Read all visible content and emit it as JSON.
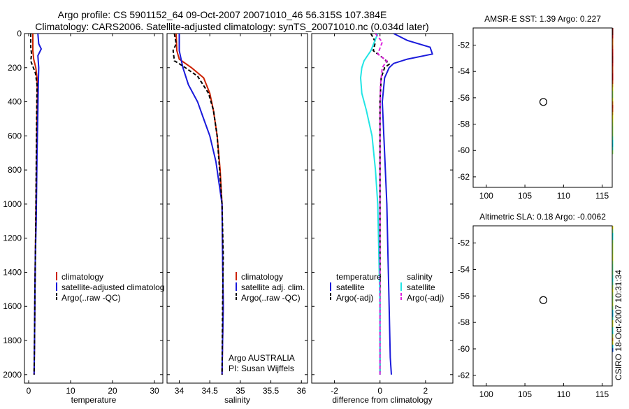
{
  "title": {
    "line1": "Argo profile: CS 5901152_64 09-Oct-2007 20071010_46 56.315S 107.384E",
    "line2": "Climatology: CARS2006. Satellite-adjusted climatology: synTS_20071010.nc (0.034d later)"
  },
  "side_label": "CSIRO 18-Oct-2007 10:31:34",
  "colors": {
    "climatology": "#cc2200",
    "satellite": "#1a1adb",
    "argo": "#000000",
    "salinity_satellite": "#22e5e5",
    "salinity_argo": "#dd22dd",
    "marker": "#000000"
  },
  "chart_data": [
    {
      "id": "temperature",
      "type": "line",
      "xlabel": "temperature",
      "ylabel": "",
      "xlim": [
        -1,
        32
      ],
      "ylim": [
        2050,
        0
      ],
      "xticks": [
        0,
        10,
        20,
        30
      ],
      "yticks": [
        0,
        200,
        400,
        600,
        800,
        1000,
        1200,
        1400,
        1600,
        1800,
        2000
      ],
      "legend": [
        "climatology",
        "satellite-adjusted climatolog",
        "Argo(..raw -QC)"
      ],
      "series": [
        {
          "name": "climatology",
          "color": "#cc2200",
          "dash": "",
          "x": [
            1.0,
            1.0,
            1.2,
            1.7,
            2.0,
            2.1,
            2.0,
            1.9,
            1.8,
            1.7,
            1.6,
            1.5,
            1.4,
            1.3
          ],
          "y": [
            0,
            100,
            150,
            200,
            260,
            350,
            500,
            700,
            900,
            1100,
            1300,
            1500,
            1800,
            2000
          ]
        },
        {
          "name": "satellite-adjusted climatolog",
          "color": "#1a1adb",
          "dash": "",
          "x": [
            2.2,
            2.4,
            3.0,
            2.2,
            2.4,
            2.3,
            2.2,
            2.0,
            1.9,
            1.8,
            1.6,
            1.5,
            1.4,
            1.3
          ],
          "y": [
            0,
            60,
            90,
            130,
            200,
            300,
            450,
            700,
            900,
            1100,
            1300,
            1500,
            1800,
            2000
          ]
        },
        {
          "name": "Argo(..raw -QC)",
          "color": "#000000",
          "dash": "5,3",
          "x": [
            0.5,
            0.5,
            0.7,
            0.5,
            0.8,
            1.6,
            2.0,
            1.9,
            1.8,
            1.7,
            1.6,
            1.5,
            1.4,
            1.3
          ],
          "y": [
            0,
            80,
            120,
            160,
            180,
            230,
            300,
            500,
            800,
            1100,
            1300,
            1500,
            1800,
            2000
          ]
        }
      ]
    },
    {
      "id": "salinity",
      "type": "line",
      "xlabel": "salinity",
      "ylabel": "",
      "xlim": [
        33.8,
        36.1
      ],
      "ylim": [
        2050,
        0
      ],
      "xticks": [
        34,
        34.5,
        35,
        35.5,
        36
      ],
      "yticks": [
        0,
        200,
        400,
        600,
        800,
        1000,
        1200,
        1400,
        1600,
        1800,
        2000
      ],
      "legend": [
        "climatology",
        "satellite adj. clim.",
        "Argo(..raw -QC)"
      ],
      "annotations": [
        "Argo AUSTRALIA",
        "PI: Susan Wijffels"
      ],
      "series": [
        {
          "name": "climatology",
          "color": "#cc2200",
          "dash": "",
          "x": [
            33.95,
            33.96,
            34.0,
            34.2,
            34.4,
            34.5,
            34.56,
            34.62,
            34.67,
            34.7,
            34.71,
            34.72,
            34.71,
            34.7
          ],
          "y": [
            0,
            100,
            150,
            200,
            260,
            350,
            450,
            600,
            800,
            1000,
            1300,
            1600,
            1800,
            2000
          ]
        },
        {
          "name": "satellite adj. clim.",
          "color": "#1a1adb",
          "dash": "",
          "x": [
            34.0,
            34.0,
            34.06,
            34.15,
            34.3,
            34.4,
            34.5,
            34.6,
            34.66,
            34.7,
            34.71,
            34.72,
            34.71,
            34.7
          ],
          "y": [
            0,
            100,
            200,
            300,
            400,
            500,
            600,
            750,
            900,
            1000,
            1300,
            1600,
            1800,
            2000
          ]
        },
        {
          "name": "Argo(..raw -QC)",
          "color": "#000000",
          "dash": "5,3",
          "x": [
            33.92,
            33.95,
            33.9,
            33.92,
            33.97,
            34.1,
            34.3,
            34.48,
            34.56,
            34.62,
            34.66,
            34.7,
            34.72,
            34.71,
            34.7
          ],
          "y": [
            0,
            60,
            100,
            160,
            170,
            200,
            250,
            350,
            450,
            600,
            800,
            1000,
            1300,
            1600,
            2000
          ]
        }
      ]
    },
    {
      "id": "difference",
      "type": "line",
      "xlabel": "difference from climatology",
      "ylabel": "",
      "xlim": [
        -3,
        3.2
      ],
      "ylim": [
        2050,
        0
      ],
      "xticks": [
        -2,
        0,
        2
      ],
      "yticks": [
        0,
        200,
        400,
        600,
        800,
        1000,
        1200,
        1400,
        1600,
        1800,
        2000
      ],
      "legend_groups": [
        {
          "heading": "temperature",
          "items": [
            "satellite",
            "Argo(-adj)"
          ]
        },
        {
          "heading": "salinity",
          "items": [
            "satellite",
            "Argo(-adj)"
          ]
        }
      ],
      "series": [
        {
          "name": "temperature satellite",
          "color": "#1a1adb",
          "dash": "",
          "x": [
            0.6,
            1.2,
            2.2,
            2.3,
            1.2,
            0.6,
            0.4,
            0.2,
            0.1,
            0.2,
            0.3,
            0.35,
            0.4,
            0.45,
            0.5
          ],
          "y": [
            0,
            40,
            80,
            120,
            150,
            175,
            200,
            260,
            400,
            700,
            1000,
            1300,
            1600,
            1900,
            2000
          ]
        },
        {
          "name": "temperature Argo(-adj)",
          "color": "#000000",
          "dash": "5,3",
          "x": [
            -0.4,
            -0.2,
            -0.3,
            0.2,
            0.4,
            0.2,
            0.05,
            0.0,
            0.0,
            0.0,
            0.0,
            0.0
          ],
          "y": [
            0,
            50,
            100,
            150,
            180,
            200,
            260,
            400,
            700,
            1000,
            1500,
            2000
          ]
        },
        {
          "name": "salinity satellite",
          "color": "#22e5e5",
          "dash": "",
          "x": [
            -0.1,
            -0.4,
            -0.7,
            -0.8,
            -0.85,
            -0.8,
            -0.6,
            -0.35,
            -0.2,
            -0.1,
            -0.05,
            0.0,
            0.0
          ],
          "y": [
            0,
            100,
            160,
            200,
            260,
            350,
            450,
            600,
            800,
            1000,
            1300,
            1600,
            2000
          ]
        },
        {
          "name": "salinity Argo(-adj)",
          "color": "#dd22dd",
          "dash": "5,3",
          "x": [
            -0.2,
            0.1,
            -0.1,
            0.3,
            0.1,
            0.02,
            0.0,
            0.0,
            0.0
          ],
          "y": [
            0,
            50,
            120,
            160,
            200,
            300,
            500,
            1000,
            2000
          ]
        }
      ]
    }
  ],
  "maps": [
    {
      "id": "sst_map",
      "title": "AMSR-E SST: 1.39 Argo: 0.227",
      "xlim": [
        98.3,
        116.3
      ],
      "ylim": [
        -62.8,
        -50.7
      ],
      "xticks": [
        100,
        105,
        110,
        115
      ],
      "yticks": [
        -52,
        -54,
        -56,
        -58,
        -60,
        -62
      ],
      "data_bottom": -60.0,
      "marker": {
        "lon": 107.384,
        "lat": -56.315
      },
      "field": "sst"
    },
    {
      "id": "sla_map",
      "title": "Altimetric SLA: 0.18 Argo: -0.0062",
      "xlim": [
        98.3,
        116.3
      ],
      "ylim": [
        -62.8,
        -50.7
      ],
      "xticks": [
        100,
        105,
        110,
        115
      ],
      "yticks": [
        -52,
        -54,
        -56,
        -58,
        -60,
        -62
      ],
      "data_bottom": -60.0,
      "marker": {
        "lon": 107.384,
        "lat": -56.315
      },
      "field": "sla"
    }
  ]
}
